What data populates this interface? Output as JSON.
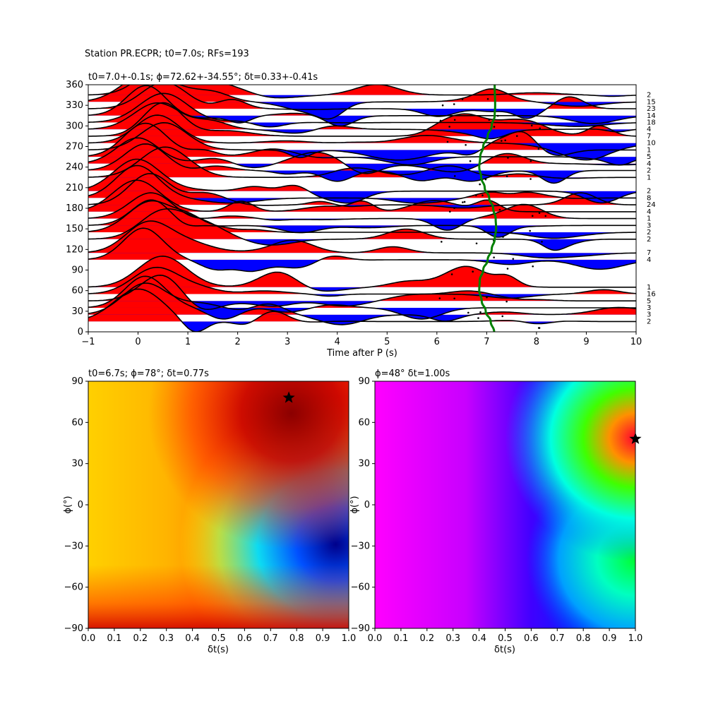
{
  "figure_title": "Station PR.ECPR; t0=7.0s; RFs=193",
  "chart_data": [
    {
      "type": "line",
      "id": "traces",
      "title": "t0=7.0+-0.1s; ϕ=72.62+-34.55°; δt=0.33+-0.41s",
      "xlabel": "Time after P (s)",
      "ylabel": "",
      "xlim": [
        -1,
        10
      ],
      "ylim": [
        0,
        360
      ],
      "xticks": [
        "−1",
        "0",
        "1",
        "2",
        "3",
        "4",
        "5",
        "6",
        "7",
        "8",
        "9",
        "10"
      ],
      "yticks": [
        "0",
        "30",
        "60",
        "90",
        "120",
        "150",
        "180",
        "210",
        "240",
        "270",
        "300",
        "330",
        "360"
      ],
      "fill_positive_color": "#ff0000",
      "fill_negative_color": "#0000ff",
      "trace_line_color": "#000000",
      "moveout_curve_color": "#008000",
      "backazimuth_bins": [
        15,
        25,
        35,
        45,
        55,
        65,
        105,
        115,
        135,
        145,
        155,
        165,
        175,
        185,
        195,
        205,
        225,
        235,
        245,
        255,
        265,
        275,
        285,
        295,
        305,
        315,
        325,
        335,
        345
      ],
      "counts_right": [
        "2",
        "3",
        "3",
        "5",
        "16",
        "1",
        "4",
        "7",
        "2",
        "2",
        "3",
        "1",
        "4",
        "24",
        "8",
        "2",
        "1",
        "2",
        "4",
        "5",
        "1",
        "10",
        "7",
        "4",
        "18",
        "14",
        "23",
        "15",
        "2"
      ],
      "moveout_curve": {
        "x": [
          7.15,
          7.08,
          6.98,
          6.9,
          6.85,
          6.86,
          6.93,
          7.02,
          7.1,
          7.16,
          7.19,
          7.18,
          7.13,
          7.05,
          6.96,
          6.89,
          6.85,
          6.87,
          6.93,
          7.02,
          7.1,
          7.16,
          7.17,
          7.16
        ],
        "y": [
          0,
          15,
          30,
          45,
          60,
          75,
          90,
          105,
          120,
          135,
          150,
          165,
          180,
          195,
          210,
          225,
          240,
          255,
          270,
          285,
          300,
          315,
          330,
          360
        ]
      }
    },
    {
      "type": "heatmap",
      "id": "grid1",
      "title": "t0=6.7s; ϕ=78°; δt=0.77s",
      "xlabel": "δt(s)",
      "ylabel": "ϕ(°)",
      "xlim": [
        0,
        1
      ],
      "ylim": [
        -90,
        90
      ],
      "xticks": [
        "0.0",
        "0.1",
        "0.2",
        "0.3",
        "0.4",
        "0.5",
        "0.6",
        "0.7",
        "0.8",
        "0.9",
        "1.0"
      ],
      "yticks": [
        "−90",
        "−60",
        "−30",
        "0",
        "30",
        "60",
        "90"
      ],
      "colormap": "jet",
      "best_fit": {
        "dt": 0.77,
        "phi": 78
      }
    },
    {
      "type": "heatmap",
      "id": "grid2",
      "title": "ϕ=48° δt=1.00s",
      "xlabel": "δt(s)",
      "ylabel": "ϕ(°)",
      "xlim": [
        0,
        1
      ],
      "ylim": [
        -90,
        90
      ],
      "xticks": [
        "0.0",
        "0.1",
        "0.2",
        "0.3",
        "0.4",
        "0.5",
        "0.6",
        "0.7",
        "0.8",
        "0.9",
        "1.0"
      ],
      "yticks": [
        "−90",
        "−60",
        "−30",
        "0",
        "30",
        "60",
        "90"
      ],
      "colormap": "gist_rainbow",
      "best_fit": {
        "dt": 1.0,
        "phi": 48
      }
    }
  ]
}
